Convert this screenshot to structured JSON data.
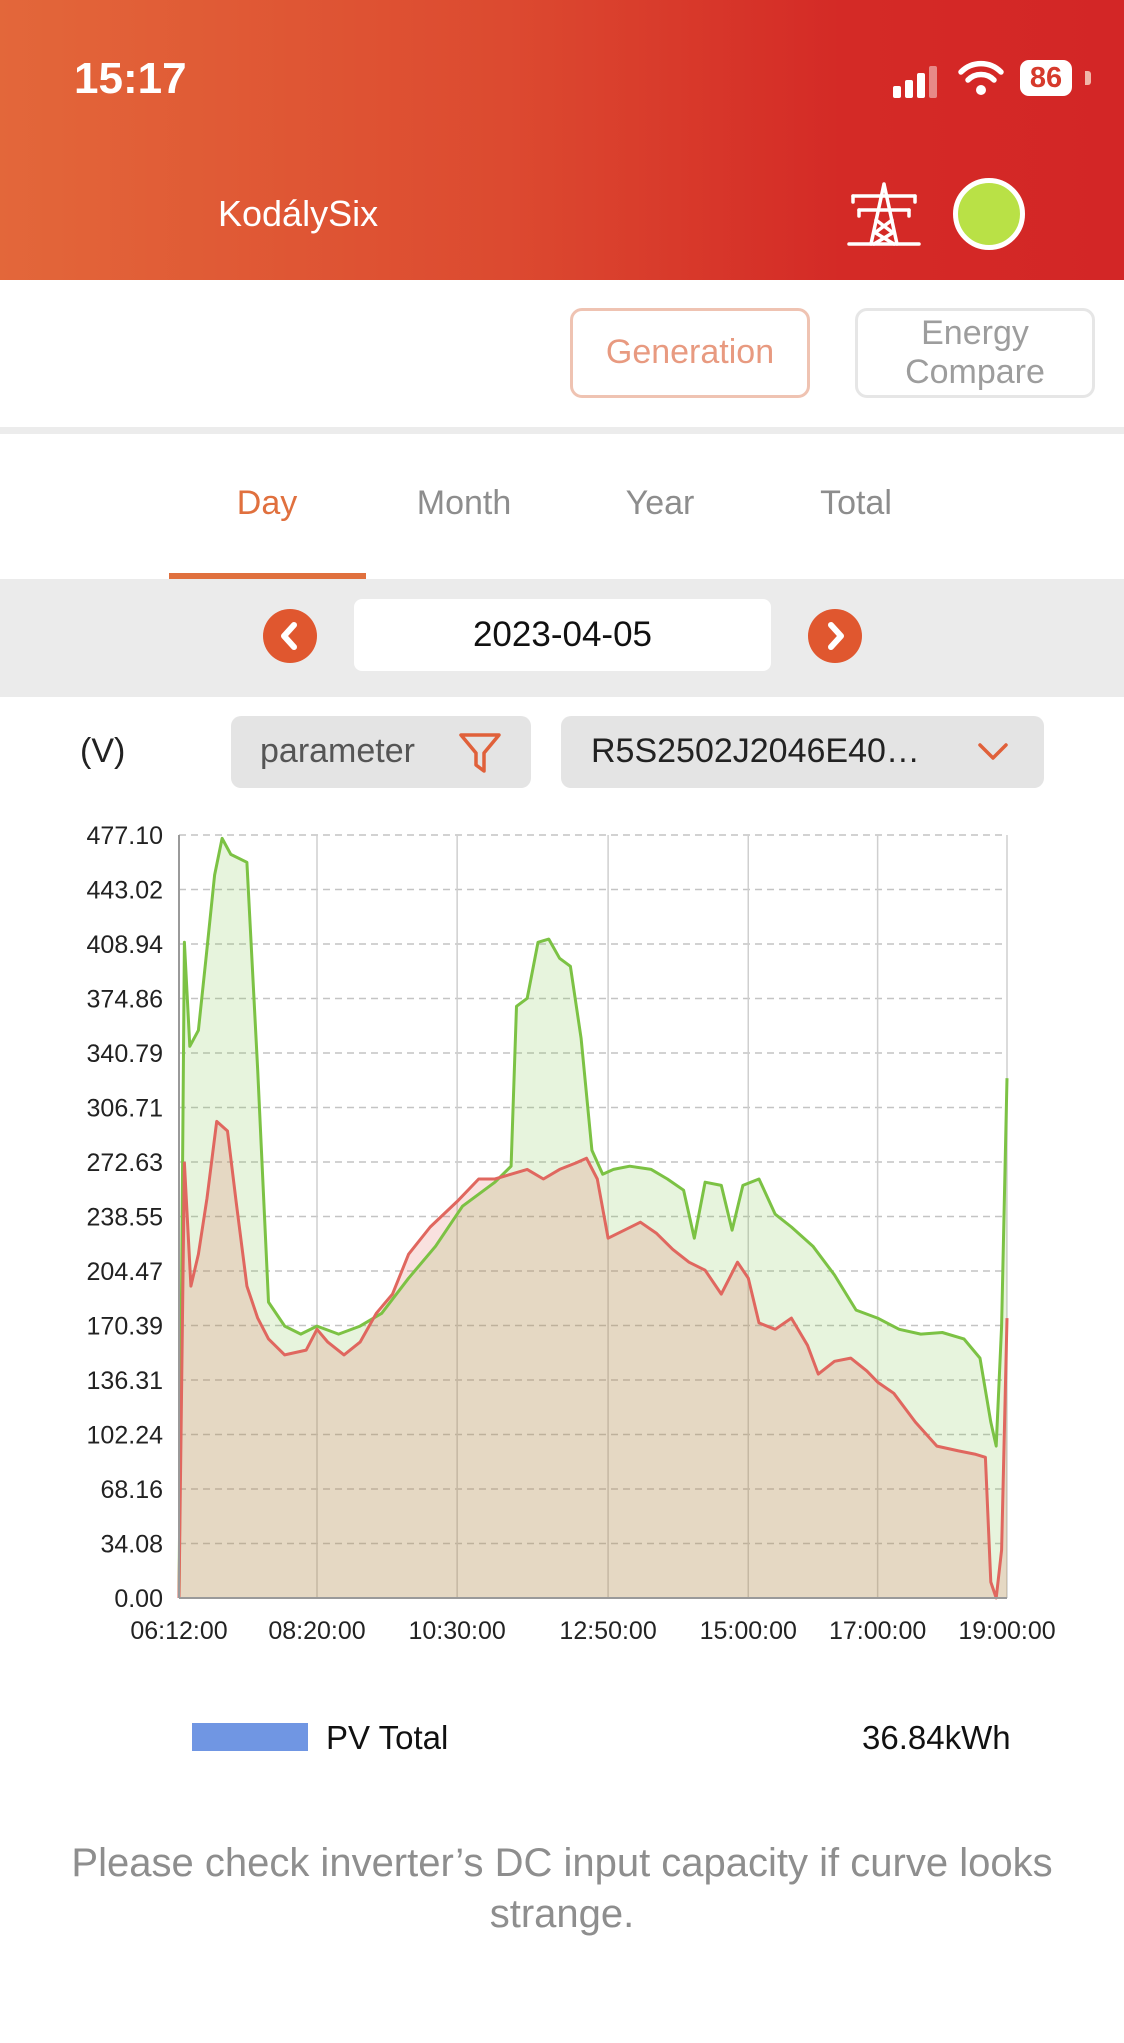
{
  "status_bar": {
    "time": "15:17",
    "battery": "86"
  },
  "header": {
    "title": "KodálySix"
  },
  "mode_buttons": {
    "generation": "Generation",
    "energy_compare": "Energy Compare"
  },
  "tabs": [
    {
      "label": "Day",
      "active": true
    },
    {
      "label": "Month",
      "active": false
    },
    {
      "label": "Year",
      "active": false
    },
    {
      "label": "Total",
      "active": false
    }
  ],
  "date": {
    "value": "2023-04-05"
  },
  "controls": {
    "unit": "(V)",
    "parameter_label": "parameter",
    "device_label": "R5S2502J2046E40…"
  },
  "colors": {
    "accent": "#e0703e",
    "header_start": "#e3673a",
    "header_end": "#d32626",
    "status_dot": "#b9e146",
    "series_green": "#7cc244",
    "series_red": "#e0675f",
    "legend": "#7096e3"
  },
  "icons": [
    "signal-icon",
    "wifi-icon",
    "battery-icon",
    "power-tower-icon",
    "chevron-left-icon",
    "chevron-right-icon",
    "filter-icon",
    "chevron-down-icon"
  ],
  "chart_data": {
    "type": "area",
    "ylabel": "(V)",
    "ylim": [
      0,
      477.1
    ],
    "yticks": [
      "0.00",
      "34.08",
      "68.16",
      "102.24",
      "136.31",
      "170.39",
      "204.47",
      "238.55",
      "272.63",
      "306.71",
      "340.79",
      "374.86",
      "408.94",
      "443.02",
      "477.10"
    ],
    "xticks": [
      "06:12:00",
      "08:20:00",
      "10:30:00",
      "12:50:00",
      "15:00:00",
      "17:00:00",
      "19:00:00"
    ],
    "grid": true,
    "series": [
      {
        "color": "#7cc244",
        "points": [
          [
            "06:12",
            0
          ],
          [
            "06:17",
            410
          ],
          [
            "06:22",
            345
          ],
          [
            "06:30",
            355
          ],
          [
            "06:37",
            400
          ],
          [
            "06:45",
            452
          ],
          [
            "06:52",
            475
          ],
          [
            "07:00",
            465
          ],
          [
            "07:15",
            460
          ],
          [
            "07:25",
            330
          ],
          [
            "07:35",
            185
          ],
          [
            "07:50",
            170
          ],
          [
            "08:05",
            165
          ],
          [
            "08:20",
            170
          ],
          [
            "08:40",
            165
          ],
          [
            "09:00",
            170
          ],
          [
            "09:20",
            178
          ],
          [
            "09:45",
            200
          ],
          [
            "10:10",
            220
          ],
          [
            "10:35",
            245
          ],
          [
            "11:05",
            260
          ],
          [
            "11:20",
            270
          ],
          [
            "11:25",
            370
          ],
          [
            "11:35",
            375
          ],
          [
            "11:45",
            410
          ],
          [
            "11:55",
            412
          ],
          [
            "12:05",
            400
          ],
          [
            "12:15",
            395
          ],
          [
            "12:25",
            350
          ],
          [
            "12:35",
            280
          ],
          [
            "12:45",
            265
          ],
          [
            "12:55",
            268
          ],
          [
            "13:10",
            270
          ],
          [
            "13:30",
            268
          ],
          [
            "13:45",
            262
          ],
          [
            "14:00",
            255
          ],
          [
            "14:10",
            225
          ],
          [
            "14:20",
            260
          ],
          [
            "14:35",
            258
          ],
          [
            "14:45",
            230
          ],
          [
            "14:55",
            258
          ],
          [
            "15:10",
            262
          ],
          [
            "15:25",
            240
          ],
          [
            "15:40",
            232
          ],
          [
            "16:00",
            220
          ],
          [
            "16:20",
            202
          ],
          [
            "16:40",
            180
          ],
          [
            "17:00",
            175
          ],
          [
            "17:20",
            168
          ],
          [
            "17:40",
            165
          ],
          [
            "18:00",
            166
          ],
          [
            "18:20",
            162
          ],
          [
            "18:35",
            150
          ],
          [
            "18:45",
            110
          ],
          [
            "18:50",
            95
          ],
          [
            "18:55",
            170
          ],
          [
            "19:00",
            325
          ]
        ]
      },
      {
        "color": "#e0675f",
        "points": [
          [
            "06:12",
            0
          ],
          [
            "06:17",
            272
          ],
          [
            "06:23",
            195
          ],
          [
            "06:30",
            215
          ],
          [
            "06:38",
            250
          ],
          [
            "06:47",
            298
          ],
          [
            "06:57",
            292
          ],
          [
            "07:05",
            248
          ],
          [
            "07:15",
            195
          ],
          [
            "07:25",
            175
          ],
          [
            "07:35",
            162
          ],
          [
            "07:50",
            152
          ],
          [
            "08:10",
            155
          ],
          [
            "08:20",
            168
          ],
          [
            "08:30",
            160
          ],
          [
            "08:45",
            152
          ],
          [
            "09:00",
            160
          ],
          [
            "09:15",
            178
          ],
          [
            "09:30",
            190
          ],
          [
            "09:45",
            215
          ],
          [
            "10:05",
            232
          ],
          [
            "10:30",
            248
          ],
          [
            "10:50",
            262
          ],
          [
            "11:05",
            262
          ],
          [
            "11:20",
            265
          ],
          [
            "11:35",
            268
          ],
          [
            "11:50",
            262
          ],
          [
            "12:05",
            268
          ],
          [
            "12:20",
            272
          ],
          [
            "12:30",
            275
          ],
          [
            "12:40",
            262
          ],
          [
            "12:50",
            225
          ],
          [
            "13:05",
            230
          ],
          [
            "13:20",
            235
          ],
          [
            "13:35",
            228
          ],
          [
            "13:50",
            218
          ],
          [
            "14:05",
            210
          ],
          [
            "14:20",
            205
          ],
          [
            "14:35",
            190
          ],
          [
            "14:50",
            210
          ],
          [
            "15:00",
            200
          ],
          [
            "15:10",
            172
          ],
          [
            "15:25",
            168
          ],
          [
            "15:40",
            175
          ],
          [
            "15:55",
            158
          ],
          [
            "16:05",
            140
          ],
          [
            "16:20",
            148
          ],
          [
            "16:35",
            150
          ],
          [
            "16:50",
            142
          ],
          [
            "17:00",
            135
          ],
          [
            "17:15",
            128
          ],
          [
            "17:35",
            110
          ],
          [
            "17:55",
            95
          ],
          [
            "18:15",
            92
          ],
          [
            "18:30",
            90
          ],
          [
            "18:40",
            88
          ],
          [
            "18:45",
            10
          ],
          [
            "18:50",
            0
          ],
          [
            "18:55",
            30
          ],
          [
            "19:00",
            175
          ]
        ]
      }
    ]
  },
  "legend": {
    "label": "PV Total",
    "value": "36.84kWh"
  },
  "footer_note": "Please check inverter’s DC input capacity if curve looks strange."
}
